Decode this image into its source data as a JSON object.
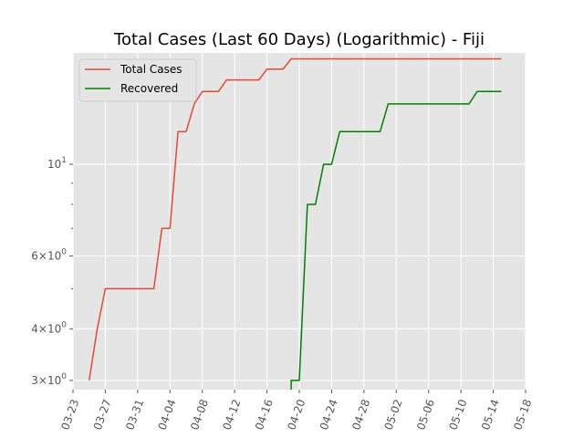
{
  "chart_data": {
    "type": "line",
    "title": "Total Cases (Last 60 Days) (Logarithmic) - Fiji",
    "xlabel": "",
    "ylabel": "",
    "y_scale": "log",
    "ylim": [
      2.85,
      18.6
    ],
    "xlim": [
      "2020-03-23",
      "2020-05-18"
    ],
    "grid": true,
    "legend_position": "top-left",
    "x_ticks": [
      "03-23",
      "03-27",
      "03-31",
      "04-04",
      "04-08",
      "04-12",
      "04-16",
      "04-20",
      "04-24",
      "04-28",
      "05-02",
      "05-06",
      "05-10",
      "05-14",
      "05-18"
    ],
    "y_ticks": [
      {
        "value": 3,
        "label_base": "3",
        "label_exp": "0"
      },
      {
        "value": 4,
        "label_base": "4",
        "label_exp": "0"
      },
      {
        "value": 6,
        "label_base": "6",
        "label_exp": "0"
      },
      {
        "value": 10,
        "label_base": "10",
        "label_exp": "1"
      }
    ],
    "y_minor_ticks": [
      5,
      7,
      8,
      9
    ],
    "series": [
      {
        "name": "Total Cases",
        "color": "#E24A33",
        "points": [
          [
            "2020-03-25",
            3
          ],
          [
            "2020-03-26",
            4
          ],
          [
            "2020-03-27",
            5
          ],
          [
            "2020-03-28",
            5
          ],
          [
            "2020-03-29",
            5
          ],
          [
            "2020-03-30",
            5
          ],
          [
            "2020-03-31",
            5
          ],
          [
            "2020-04-01",
            5
          ],
          [
            "2020-04-02",
            5
          ],
          [
            "2020-04-03",
            7
          ],
          [
            "2020-04-04",
            7
          ],
          [
            "2020-04-05",
            12
          ],
          [
            "2020-04-06",
            12
          ],
          [
            "2020-04-07",
            14
          ],
          [
            "2020-04-08",
            15
          ],
          [
            "2020-04-09",
            15
          ],
          [
            "2020-04-10",
            15
          ],
          [
            "2020-04-11",
            16
          ],
          [
            "2020-04-12",
            16
          ],
          [
            "2020-04-13",
            16
          ],
          [
            "2020-04-14",
            16
          ],
          [
            "2020-04-15",
            16
          ],
          [
            "2020-04-16",
            17
          ],
          [
            "2020-04-17",
            17
          ],
          [
            "2020-04-18",
            17
          ],
          [
            "2020-04-19",
            18
          ],
          [
            "2020-04-20",
            18
          ],
          [
            "2020-04-21",
            18
          ],
          [
            "2020-04-22",
            18
          ],
          [
            "2020-04-23",
            18
          ],
          [
            "2020-04-24",
            18
          ],
          [
            "2020-04-25",
            18
          ],
          [
            "2020-04-26",
            18
          ],
          [
            "2020-04-27",
            18
          ],
          [
            "2020-04-28",
            18
          ],
          [
            "2020-04-29",
            18
          ],
          [
            "2020-04-30",
            18
          ],
          [
            "2020-05-01",
            18
          ],
          [
            "2020-05-02",
            18
          ],
          [
            "2020-05-03",
            18
          ],
          [
            "2020-05-04",
            18
          ],
          [
            "2020-05-05",
            18
          ],
          [
            "2020-05-06",
            18
          ],
          [
            "2020-05-07",
            18
          ],
          [
            "2020-05-08",
            18
          ],
          [
            "2020-05-09",
            18
          ],
          [
            "2020-05-10",
            18
          ],
          [
            "2020-05-11",
            18
          ],
          [
            "2020-05-12",
            18
          ],
          [
            "2020-05-13",
            18
          ],
          [
            "2020-05-14",
            18
          ],
          [
            "2020-05-15",
            18
          ]
        ]
      },
      {
        "name": "Recovered",
        "color": "#008000",
        "points": [
          [
            "2020-04-19",
            3
          ],
          [
            "2020-04-20",
            3
          ],
          [
            "2020-04-21",
            8
          ],
          [
            "2020-04-22",
            8
          ],
          [
            "2020-04-23",
            10
          ],
          [
            "2020-04-24",
            10
          ],
          [
            "2020-04-25",
            12
          ],
          [
            "2020-04-26",
            12
          ],
          [
            "2020-04-27",
            12
          ],
          [
            "2020-04-28",
            12
          ],
          [
            "2020-04-29",
            12
          ],
          [
            "2020-04-30",
            12
          ],
          [
            "2020-05-01",
            14
          ],
          [
            "2020-05-02",
            14
          ],
          [
            "2020-05-03",
            14
          ],
          [
            "2020-05-04",
            14
          ],
          [
            "2020-05-05",
            14
          ],
          [
            "2020-05-06",
            14
          ],
          [
            "2020-05-07",
            14
          ],
          [
            "2020-05-08",
            14
          ],
          [
            "2020-05-09",
            14
          ],
          [
            "2020-05-10",
            14
          ],
          [
            "2020-05-11",
            14
          ],
          [
            "2020-05-12",
            15
          ],
          [
            "2020-05-13",
            15
          ],
          [
            "2020-05-14",
            15
          ],
          [
            "2020-05-15",
            15
          ]
        ],
        "starts_below_axis": true
      }
    ]
  }
}
